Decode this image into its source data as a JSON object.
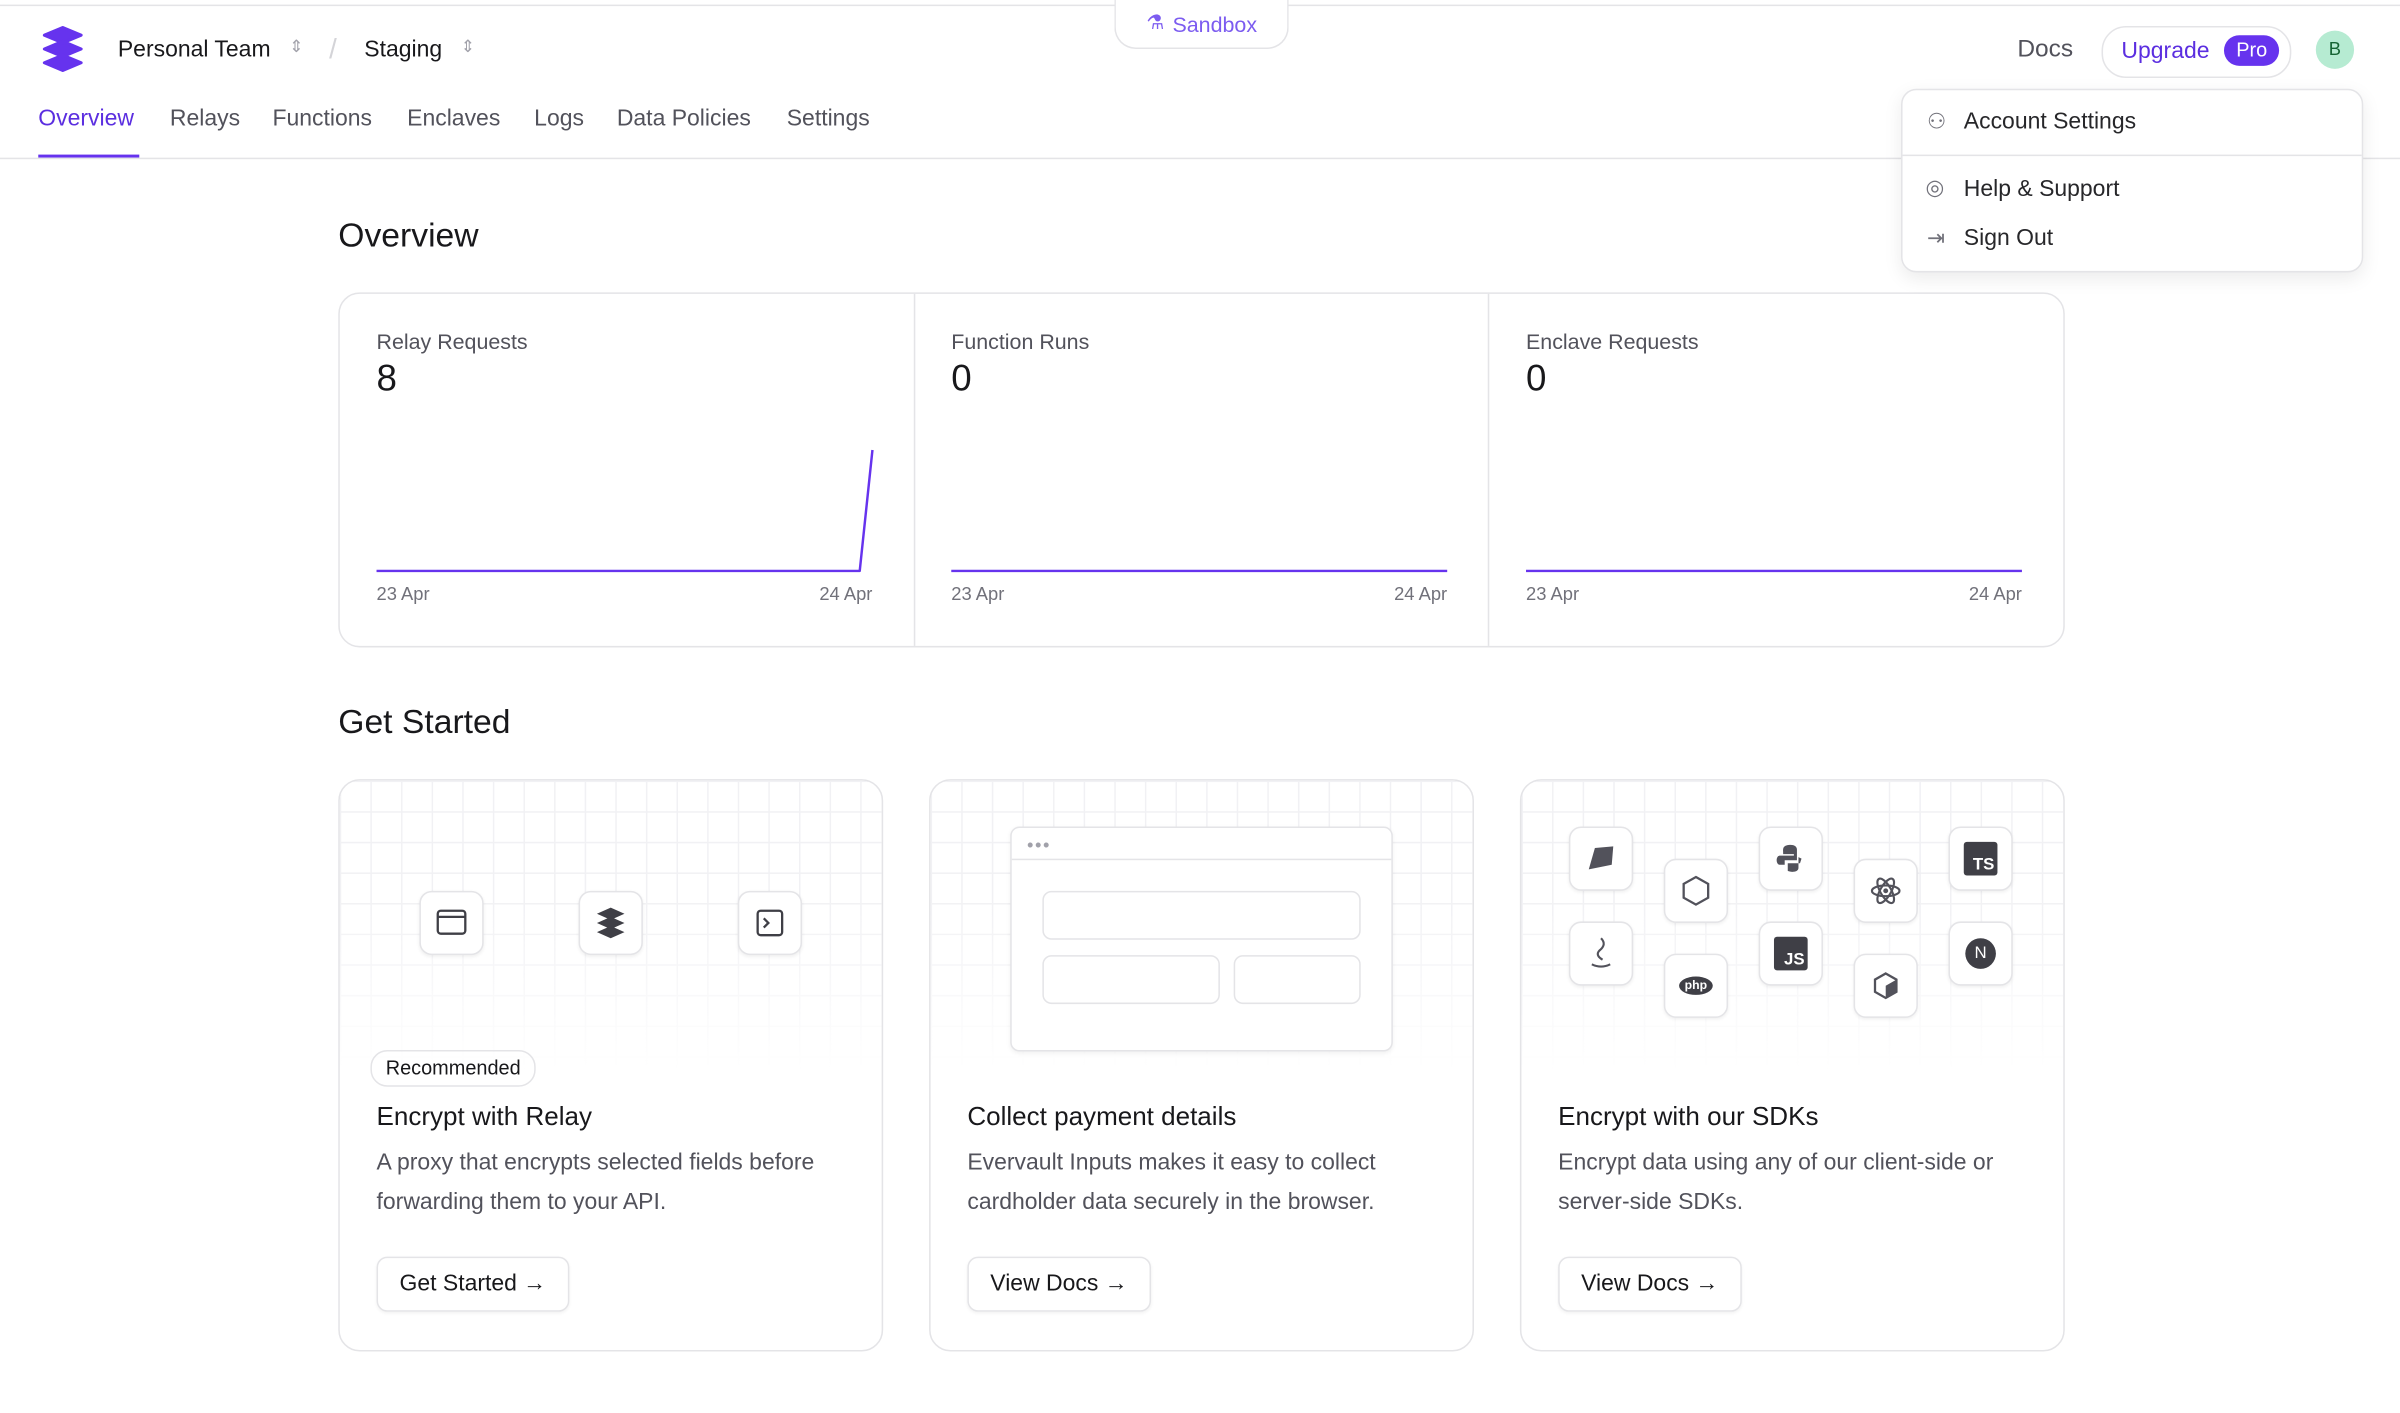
{
  "header": {
    "team": "Personal Team",
    "environment": "Staging",
    "sandbox": "Sandbox",
    "docs": "Docs",
    "upgrade": "Upgrade",
    "pro": "Pro",
    "avatar": "B"
  },
  "nav": [
    "Overview",
    "Relays",
    "Functions",
    "Enclaves",
    "Logs",
    "Data Policies",
    "Settings"
  ],
  "menu": [
    "Account Settings",
    "Help & Support",
    "Sign Out"
  ],
  "overview": {
    "title": "Overview",
    "metrics": [
      {
        "label": "Relay Requests",
        "value": 8,
        "x_start": "23 Apr",
        "x_end": "24 Apr",
        "series": [
          0,
          0,
          0,
          0,
          0,
          0,
          0,
          0,
          0,
          0,
          0,
          0,
          0,
          0,
          0,
          0,
          0,
          0,
          0,
          0,
          0,
          0,
          0,
          0,
          0,
          0,
          0,
          0,
          0,
          0,
          0,
          0,
          0,
          0,
          0,
          0,
          0,
          0,
          0,
          8
        ]
      },
      {
        "label": "Function Runs",
        "value": 0,
        "x_start": "23 Apr",
        "x_end": "24 Apr",
        "series": [
          0,
          0,
          0,
          0,
          0,
          0,
          0,
          0,
          0,
          0,
          0,
          0,
          0,
          0,
          0,
          0,
          0,
          0,
          0,
          0,
          0,
          0,
          0,
          0,
          0,
          0,
          0,
          0,
          0,
          0,
          0,
          0,
          0,
          0,
          0,
          0,
          0,
          0,
          0,
          0
        ]
      },
      {
        "label": "Enclave Requests",
        "value": 0,
        "x_start": "23 Apr",
        "x_end": "24 Apr",
        "series": [
          0,
          0,
          0,
          0,
          0,
          0,
          0,
          0,
          0,
          0,
          0,
          0,
          0,
          0,
          0,
          0,
          0,
          0,
          0,
          0,
          0,
          0,
          0,
          0,
          0,
          0,
          0,
          0,
          0,
          0,
          0,
          0,
          0,
          0,
          0,
          0,
          0,
          0,
          0,
          0
        ]
      }
    ]
  },
  "get_started": {
    "title": "Get Started",
    "sdk_icons": [
      "TS",
      "JS",
      "php",
      "N"
    ],
    "cards": [
      {
        "badge": "Recommended",
        "title": "Encrypt with Relay",
        "description": "A proxy that encrypts selected fields before forwarding them to your API.",
        "button": "Get Started"
      },
      {
        "title": "Collect payment details",
        "description": "Evervault Inputs makes it easy to collect cardholder data securely in the browser.",
        "button": "View Docs"
      },
      {
        "title": "Encrypt with our SDKs",
        "description": "Encrypt data using any of our client-side or server-side SDKs.",
        "button": "View Docs"
      }
    ]
  }
}
